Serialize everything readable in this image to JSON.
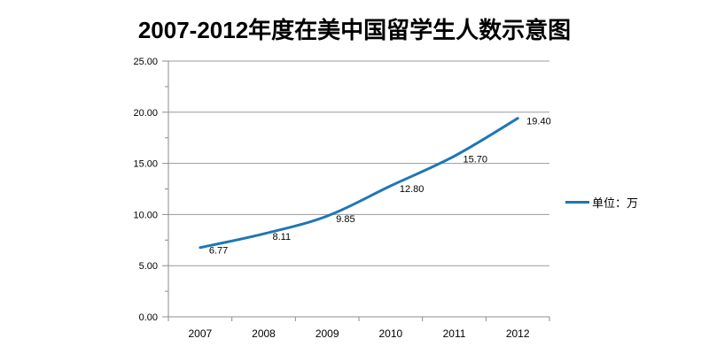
{
  "title": "2007-2012年度在美中国留学生人数示意图",
  "colors": {
    "line": "#1F77B4",
    "grid": "#9a9a9a",
    "axis": "#8c8c8c",
    "text": "#000000",
    "background": "#ffffff"
  },
  "chart_data": {
    "type": "line",
    "title": "2007-2012年度在美中国留学生人数示意图",
    "categories": [
      "2007",
      "2008",
      "2009",
      "2010",
      "2011",
      "2012"
    ],
    "values": [
      6.77,
      8.11,
      9.85,
      12.8,
      15.7,
      19.4
    ],
    "data_labels": [
      "6.77",
      "8.11",
      "9.85",
      "12.80",
      "15.70",
      "19.40"
    ],
    "y_tick_values": [
      0,
      5,
      10,
      15,
      20,
      25
    ],
    "y_tick_labels": [
      "0.00",
      "5.00",
      "10.00",
      "15.00",
      "20.00",
      "25.00"
    ],
    "y_minor_tick_values": [
      2.5,
      7.5,
      12.5,
      17.5,
      22.5
    ],
    "ylim": [
      0,
      25
    ],
    "y_major_step": 5,
    "y_minor_step": 2.5,
    "xlabel": "",
    "ylabel": "",
    "grid": true,
    "smooth": true,
    "legend": {
      "label": "单位：万",
      "position": "right"
    }
  }
}
